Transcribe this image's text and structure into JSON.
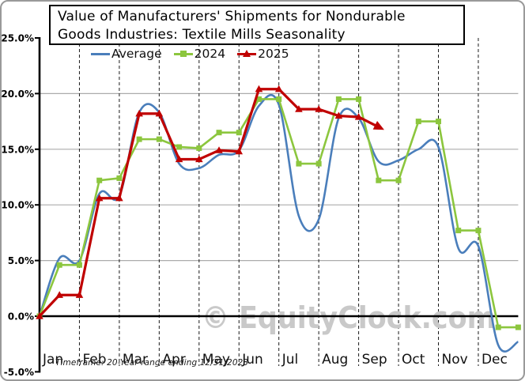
{
  "title_line1": "Value of Manufacturers'  Shipments for Nondurable",
  "title_line2": "Goods Industries: Textile Mills Seasonality",
  "watermark": "© EquityClock.com",
  "footnote": "Timeframe: 20-Year range ending 12/31/2023",
  "legend": [
    {
      "label": "Average",
      "color": "#4a7ebb",
      "marker": "line"
    },
    {
      "label": "2024",
      "color": "#8cc63e",
      "marker": "square"
    },
    {
      "label": "2025",
      "color": "#c00000",
      "marker": "triangle"
    }
  ],
  "chart_data": {
    "type": "line",
    "title": "Value of Manufacturers' Shipments for Nondurable Goods Industries: Textile Mills Seasonality",
    "xlabel": "",
    "ylabel": "",
    "ylim": [
      -5,
      25
    ],
    "y_ticks": [
      25,
      20,
      15,
      10,
      5,
      0,
      -5
    ],
    "y_tick_labels": [
      "25.0%",
      "20.0%",
      "15.0%",
      "10.0%",
      "5.0%",
      "0.0%",
      "-5.0%"
    ],
    "x_months": [
      "Jan",
      "Feb",
      "Mar",
      "Apr",
      "May",
      "Jun",
      "Jul",
      "Aug",
      "Sep",
      "Oct",
      "Nov",
      "Dec"
    ],
    "x_unit": "months (two data points per month: mid-month and month-end; 0 = Jan 1)",
    "grid": {
      "horizontal": [
        5,
        10,
        15,
        20
      ],
      "vertical_dashed_at_month_boundaries": true
    },
    "legend_position": "top",
    "series": [
      {
        "name": "Average",
        "color": "#4a7ebb",
        "marker": "none",
        "smooth": true,
        "x": [
          0,
          0.5,
          1,
          1.5,
          2,
          2.5,
          3,
          3.5,
          4,
          4.5,
          5,
          5.5,
          6,
          6.5,
          7,
          7.5,
          8,
          8.5,
          9,
          9.5,
          10,
          10.5,
          11,
          11.5,
          12
        ],
        "values": [
          0,
          5.2,
          5.0,
          11.0,
          10.8,
          18.3,
          18.3,
          13.7,
          13.3,
          14.5,
          14.9,
          18.9,
          19.0,
          9.0,
          8.7,
          17.8,
          17.8,
          13.9,
          14.0,
          15.0,
          15.2,
          6.1,
          6.3,
          -2.6,
          -2.3
        ]
      },
      {
        "name": "2024",
        "color": "#8cc63e",
        "marker": "square",
        "smooth": false,
        "x": [
          0,
          0.5,
          1,
          1.5,
          2,
          2.5,
          3,
          3.5,
          4,
          4.5,
          5,
          5.5,
          6,
          6.5,
          7,
          7.5,
          8,
          8.5,
          9,
          9.5,
          10,
          10.5,
          11,
          11.5,
          12
        ],
        "values": [
          0,
          4.6,
          4.6,
          12.2,
          12.4,
          15.9,
          15.9,
          15.2,
          15.1,
          16.5,
          16.5,
          19.5,
          19.5,
          13.7,
          13.7,
          19.5,
          19.5,
          12.2,
          12.2,
          17.5,
          17.5,
          7.7,
          7.7,
          -1.0,
          -1.0
        ]
      },
      {
        "name": "2025",
        "color": "#c00000",
        "marker": "triangle",
        "smooth": false,
        "arrow_end": true,
        "x": [
          0,
          0.5,
          1,
          1.5,
          2,
          2.5,
          3,
          3.5,
          4,
          4.5,
          5,
          5.5,
          6,
          6.5,
          7,
          7.5,
          8,
          8.5
        ],
        "values": [
          0,
          1.9,
          1.9,
          10.6,
          10.6,
          18.2,
          18.2,
          14.1,
          14.1,
          14.9,
          14.8,
          20.4,
          20.4,
          18.6,
          18.6,
          18.0,
          17.9,
          17.0
        ]
      }
    ]
  }
}
